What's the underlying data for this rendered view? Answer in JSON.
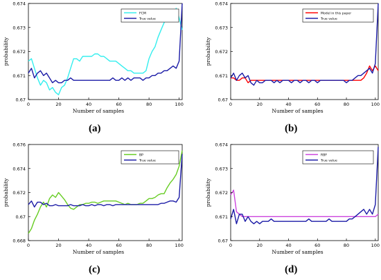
{
  "figure": {
    "panels": [
      {
        "label": "(a)",
        "x_ticks": [
          "0",
          "20",
          "40",
          "60",
          "80",
          "100"
        ],
        "y_ticks": [
          "0.67",
          "0.671",
          "0.672",
          "0.673",
          "0.674"
        ]
      },
      {
        "label": "(b)",
        "x_ticks": [
          "0",
          "20",
          "40",
          "60",
          "80",
          "100"
        ],
        "y_ticks": [
          "0.67",
          "0.671",
          "0.672",
          "0.673",
          "0.674"
        ]
      },
      {
        "label": "(c)",
        "x_ticks": [
          "0",
          "20",
          "40",
          "60",
          "80",
          "100"
        ],
        "y_ticks": [
          "0.668",
          "0.67",
          "0.672",
          "0.674",
          "0.676"
        ]
      },
      {
        "label": "(d)",
        "x_ticks": [
          "0",
          "20",
          "40",
          "60",
          "80",
          "100"
        ],
        "y_ticks": [
          "0.67",
          "0.671",
          "0.672",
          "0.673",
          "0.674"
        ]
      }
    ]
  },
  "chart_data": [
    {
      "type": "line",
      "xlabel": "Number of samples",
      "ylabel": "probability",
      "xlim": [
        0,
        102
      ],
      "ylim": [
        0.67,
        0.674
      ],
      "grid": false,
      "legend_position": "top-right",
      "series": [
        {
          "name": "FCM",
          "color": "#33eeee",
          "x": [
            0,
            2,
            4,
            6,
            8,
            10,
            12,
            14,
            16,
            18,
            20,
            22,
            24,
            26,
            28,
            30,
            32,
            34,
            36,
            38,
            40,
            42,
            44,
            46,
            48,
            50,
            52,
            54,
            56,
            58,
            60,
            62,
            64,
            66,
            68,
            70,
            72,
            74,
            76,
            78,
            80,
            82,
            84,
            86,
            88,
            90,
            92,
            94,
            96,
            98,
            100,
            102
          ],
          "values": [
            0.6716,
            0.6717,
            0.6713,
            0.6709,
            0.6706,
            0.6708,
            0.6707,
            0.6704,
            0.6705,
            0.6703,
            0.6702,
            0.6705,
            0.6706,
            0.6709,
            0.6713,
            0.6717,
            0.6717,
            0.6716,
            0.6718,
            0.6718,
            0.6718,
            0.6718,
            0.6719,
            0.6719,
            0.6718,
            0.6718,
            0.6717,
            0.6716,
            0.6716,
            0.6716,
            0.6715,
            0.6714,
            0.6713,
            0.6712,
            0.6712,
            0.6711,
            0.6711,
            0.6711,
            0.6711,
            0.6712,
            0.6717,
            0.672,
            0.6722,
            0.6726,
            0.6729,
            0.6732,
            0.6735,
            0.6737,
            0.6733,
            0.6738,
            0.6734,
            0.6729
          ]
        },
        {
          "name": "True value",
          "color": "#1a1aa6",
          "x": [
            0,
            2,
            4,
            6,
            8,
            10,
            12,
            14,
            16,
            18,
            20,
            22,
            24,
            26,
            28,
            30,
            32,
            34,
            36,
            38,
            40,
            42,
            44,
            46,
            48,
            50,
            52,
            54,
            56,
            58,
            60,
            62,
            64,
            66,
            68,
            70,
            72,
            74,
            76,
            78,
            80,
            82,
            84,
            86,
            88,
            90,
            92,
            94,
            96,
            98,
            100,
            102
          ],
          "values": [
            0.6711,
            0.6713,
            0.6709,
            0.6711,
            0.6712,
            0.671,
            0.6711,
            0.6709,
            0.6707,
            0.6708,
            0.6707,
            0.6707,
            0.6708,
            0.6708,
            0.6709,
            0.6708,
            0.6708,
            0.6708,
            0.6708,
            0.6708,
            0.6708,
            0.6708,
            0.6708,
            0.6708,
            0.6708,
            0.6708,
            0.6708,
            0.6708,
            0.6709,
            0.6708,
            0.6708,
            0.6709,
            0.6708,
            0.6709,
            0.6708,
            0.6709,
            0.6709,
            0.6709,
            0.6708,
            0.6709,
            0.6709,
            0.671,
            0.671,
            0.6711,
            0.6711,
            0.6712,
            0.6712,
            0.6713,
            0.6714,
            0.6713,
            0.6716,
            0.674
          ]
        }
      ]
    },
    {
      "type": "line",
      "xlabel": "Number of samples",
      "ylabel": "probability",
      "xlim": [
        0,
        102
      ],
      "ylim": [
        0.67,
        0.674
      ],
      "grid": false,
      "legend_position": "top-right",
      "series": [
        {
          "name": "Model in this paper",
          "color": "#ff0000",
          "x": [
            0,
            2,
            4,
            6,
            8,
            10,
            12,
            14,
            16,
            18,
            20,
            22,
            24,
            26,
            28,
            30,
            32,
            34,
            36,
            38,
            40,
            42,
            44,
            46,
            48,
            50,
            52,
            54,
            56,
            58,
            60,
            62,
            64,
            66,
            68,
            70,
            72,
            74,
            76,
            78,
            80,
            82,
            84,
            86,
            88,
            90,
            92,
            94,
            96,
            98,
            100,
            102
          ],
          "values": [
            0.6709,
            0.6709,
            0.6708,
            0.6708,
            0.6709,
            0.6709,
            0.6707,
            0.6708,
            0.6708,
            0.6708,
            0.6708,
            0.6708,
            0.6708,
            0.6708,
            0.6708,
            0.6708,
            0.6708,
            0.6708,
            0.6708,
            0.6708,
            0.6708,
            0.6708,
            0.6708,
            0.6708,
            0.6708,
            0.6708,
            0.6708,
            0.6708,
            0.6708,
            0.6708,
            0.6708,
            0.6708,
            0.6708,
            0.6708,
            0.6708,
            0.6708,
            0.6708,
            0.6708,
            0.6708,
            0.6708,
            0.6708,
            0.6708,
            0.6708,
            0.6708,
            0.6708,
            0.6708,
            0.6709,
            0.6711,
            0.6714,
            0.6712,
            0.6714,
            0.6712
          ]
        },
        {
          "name": "True value",
          "color": "#1a1aa6",
          "x": [
            0,
            2,
            4,
            6,
            8,
            10,
            12,
            14,
            16,
            18,
            20,
            22,
            24,
            26,
            28,
            30,
            32,
            34,
            36,
            38,
            40,
            42,
            44,
            46,
            48,
            50,
            52,
            54,
            56,
            58,
            60,
            62,
            64,
            66,
            68,
            70,
            72,
            74,
            76,
            78,
            80,
            82,
            84,
            86,
            88,
            90,
            92,
            94,
            96,
            98,
            100,
            102
          ],
          "values": [
            0.6709,
            0.6711,
            0.6708,
            0.671,
            0.6711,
            0.6709,
            0.671,
            0.6707,
            0.6706,
            0.6708,
            0.6707,
            0.6707,
            0.6708,
            0.6708,
            0.6708,
            0.6707,
            0.6708,
            0.6707,
            0.6708,
            0.6708,
            0.6708,
            0.6707,
            0.6708,
            0.6708,
            0.6707,
            0.6708,
            0.6708,
            0.6707,
            0.6708,
            0.6708,
            0.6707,
            0.6708,
            0.6708,
            0.6708,
            0.6708,
            0.6708,
            0.6708,
            0.6708,
            0.6708,
            0.6708,
            0.6707,
            0.6708,
            0.6708,
            0.6709,
            0.671,
            0.671,
            0.6711,
            0.6712,
            0.6713,
            0.6711,
            0.6715,
            0.674
          ]
        }
      ]
    },
    {
      "type": "line",
      "xlabel": "Number of samples",
      "ylabel": "probability",
      "xlim": [
        0,
        102
      ],
      "ylim": [
        0.668,
        0.676
      ],
      "grid": false,
      "legend_position": "top-right",
      "series": [
        {
          "name": "BP",
          "color": "#66cc22",
          "x": [
            0,
            2,
            4,
            6,
            8,
            10,
            12,
            14,
            16,
            18,
            20,
            22,
            24,
            26,
            28,
            30,
            32,
            34,
            36,
            38,
            40,
            42,
            44,
            46,
            48,
            50,
            52,
            54,
            56,
            58,
            60,
            62,
            64,
            66,
            68,
            70,
            72,
            74,
            76,
            78,
            80,
            82,
            84,
            86,
            88,
            90,
            92,
            94,
            96,
            98,
            100,
            102
          ],
          "values": [
            0.6686,
            0.669,
            0.6697,
            0.6702,
            0.6708,
            0.6712,
            0.6708,
            0.6715,
            0.6718,
            0.6716,
            0.672,
            0.6717,
            0.6714,
            0.671,
            0.6707,
            0.6706,
            0.6708,
            0.671,
            0.671,
            0.6711,
            0.6711,
            0.6712,
            0.6712,
            0.6711,
            0.6712,
            0.6713,
            0.6713,
            0.6713,
            0.6713,
            0.6713,
            0.6712,
            0.6711,
            0.671,
            0.6711,
            0.671,
            0.671,
            0.671,
            0.6711,
            0.6711,
            0.6713,
            0.6715,
            0.6715,
            0.6716,
            0.6718,
            0.6719,
            0.6719,
            0.6724,
            0.6728,
            0.6731,
            0.6735,
            0.6742,
            0.6755
          ]
        },
        {
          "name": "True value",
          "color": "#1a1aa6",
          "x": [
            0,
            2,
            4,
            6,
            8,
            10,
            12,
            14,
            16,
            18,
            20,
            22,
            24,
            26,
            28,
            30,
            32,
            34,
            36,
            38,
            40,
            42,
            44,
            46,
            48,
            50,
            52,
            54,
            56,
            58,
            60,
            62,
            64,
            66,
            68,
            70,
            72,
            74,
            76,
            78,
            80,
            82,
            84,
            86,
            88,
            90,
            92,
            94,
            96,
            98,
            100,
            102
          ],
          "values": [
            0.671,
            0.6713,
            0.6708,
            0.6712,
            0.6712,
            0.671,
            0.6711,
            0.6709,
            0.6709,
            0.671,
            0.6709,
            0.6709,
            0.6709,
            0.6709,
            0.671,
            0.6709,
            0.6709,
            0.6709,
            0.671,
            0.6709,
            0.6709,
            0.671,
            0.6709,
            0.671,
            0.671,
            0.6709,
            0.671,
            0.671,
            0.6709,
            0.671,
            0.671,
            0.671,
            0.671,
            0.671,
            0.671,
            0.671,
            0.671,
            0.671,
            0.671,
            0.671,
            0.671,
            0.671,
            0.671,
            0.671,
            0.6711,
            0.6711,
            0.6712,
            0.6713,
            0.6713,
            0.6712,
            0.6716,
            0.6752
          ]
        }
      ]
    },
    {
      "type": "line",
      "xlabel": "Number of samples",
      "ylabel": "probability",
      "xlim": [
        0,
        102
      ],
      "ylim": [
        0.67,
        0.674
      ],
      "grid": false,
      "legend_position": "top-right",
      "series": [
        {
          "name": "RBF",
          "color": "#cc44dd",
          "x": [
            0,
            2,
            4,
            6,
            8,
            10,
            12,
            14,
            16,
            18,
            20,
            22,
            24,
            26,
            28,
            30,
            32,
            34,
            36,
            38,
            40,
            42,
            44,
            46,
            48,
            50,
            52,
            54,
            56,
            58,
            60,
            62,
            64,
            66,
            68,
            70,
            72,
            74,
            76,
            78,
            80,
            82,
            84,
            86,
            88,
            90,
            92,
            94,
            96,
            98,
            100,
            102
          ],
          "values": [
            0.6719,
            0.6721,
            0.6712,
            0.6711,
            0.671,
            0.671,
            0.671,
            0.671,
            0.671,
            0.671,
            0.671,
            0.671,
            0.671,
            0.671,
            0.671,
            0.671,
            0.671,
            0.671,
            0.671,
            0.671,
            0.671,
            0.671,
            0.671,
            0.671,
            0.671,
            0.671,
            0.671,
            0.671,
            0.671,
            0.671,
            0.671,
            0.671,
            0.671,
            0.671,
            0.671,
            0.671,
            0.671,
            0.671,
            0.671,
            0.671,
            0.671,
            0.671,
            0.671,
            0.671,
            0.671,
            0.671,
            0.671,
            0.671,
            0.671,
            0.671,
            0.671,
            0.6711
          ]
        },
        {
          "name": "True value",
          "color": "#1a1aa6",
          "x": [
            0,
            2,
            4,
            6,
            8,
            10,
            12,
            14,
            16,
            18,
            20,
            22,
            24,
            26,
            28,
            30,
            32,
            34,
            36,
            38,
            40,
            42,
            44,
            46,
            48,
            50,
            52,
            54,
            56,
            58,
            60,
            62,
            64,
            66,
            68,
            70,
            72,
            74,
            76,
            78,
            80,
            82,
            84,
            86,
            88,
            90,
            92,
            94,
            96,
            98,
            100,
            102
          ],
          "values": [
            0.6709,
            0.6713,
            0.6707,
            0.6711,
            0.6711,
            0.6708,
            0.671,
            0.6708,
            0.6707,
            0.6708,
            0.6707,
            0.6708,
            0.6708,
            0.6708,
            0.6709,
            0.6708,
            0.6708,
            0.6708,
            0.6708,
            0.6708,
            0.6708,
            0.6708,
            0.6708,
            0.6708,
            0.6708,
            0.6708,
            0.6708,
            0.6709,
            0.6708,
            0.6708,
            0.6708,
            0.6708,
            0.6708,
            0.6708,
            0.6709,
            0.6708,
            0.6708,
            0.6708,
            0.6708,
            0.6708,
            0.6708,
            0.6709,
            0.6709,
            0.671,
            0.6711,
            0.6712,
            0.6713,
            0.6711,
            0.6713,
            0.6711,
            0.6715,
            0.6739
          ]
        }
      ]
    }
  ]
}
